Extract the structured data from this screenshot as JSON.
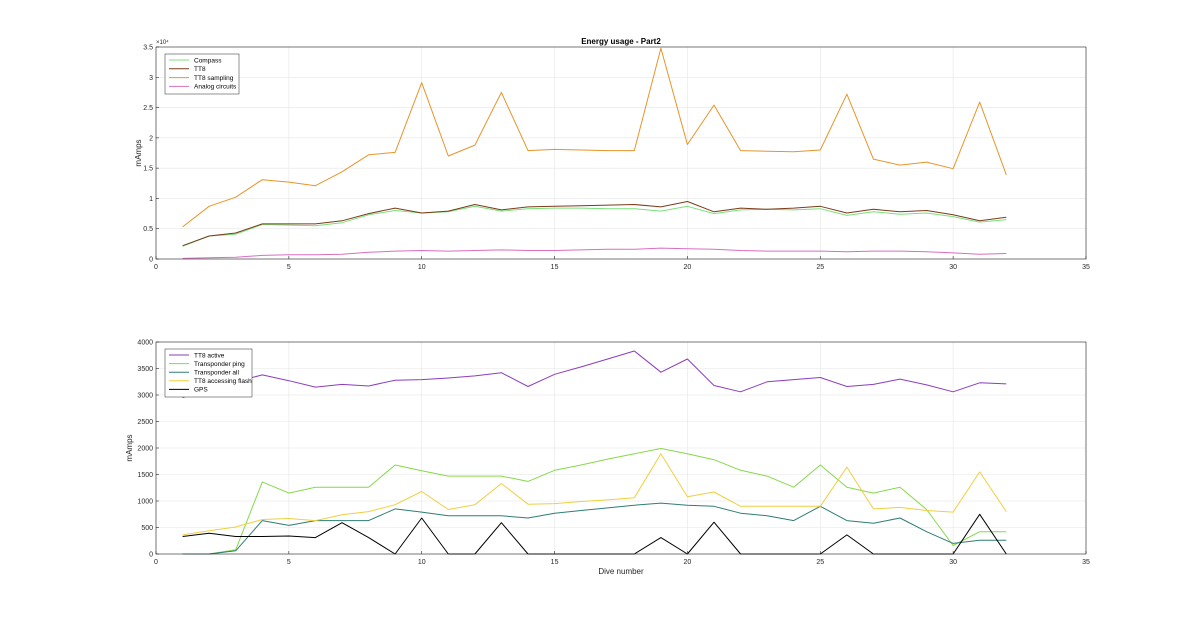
{
  "chart_data": [
    {
      "type": "line",
      "title": "Energy usage - Part2",
      "xlabel": "",
      "ylabel": "mAmps",
      "y_exponent_label": "×10⁴",
      "xlim": [
        0,
        35
      ],
      "ylim": [
        0,
        35000
      ],
      "xticks": [
        0,
        5,
        10,
        15,
        20,
        25,
        30,
        35
      ],
      "yticks": [
        0,
        5000,
        10000,
        15000,
        20000,
        25000,
        30000,
        35000
      ],
      "ytick_labels": [
        "0",
        "0.5",
        "1",
        "1.5",
        "2",
        "2.5",
        "3",
        "3.5"
      ],
      "grid": true,
      "legend_position": "top-left",
      "x": [
        1,
        2,
        3,
        4,
        5,
        6,
        7,
        8,
        9,
        10,
        11,
        12,
        13,
        14,
        15,
        16,
        17,
        18,
        19,
        20,
        21,
        22,
        23,
        24,
        25,
        26,
        27,
        28,
        29,
        30,
        31,
        32
      ],
      "series": [
        {
          "name": "Compass",
          "color": "#7be07b",
          "values": [
            2100,
            3800,
            4100,
            5700,
            5600,
            5500,
            6000,
            7300,
            8000,
            7600,
            7800,
            8700,
            7900,
            8300,
            8400,
            8400,
            8300,
            8300,
            7900,
            8700,
            7500,
            8100,
            8200,
            8100,
            8300,
            7200,
            7800,
            7400,
            7600,
            7000,
            6100,
            6500
          ]
        },
        {
          "name": "TT8",
          "color": "#7a3b1a",
          "values": [
            2200,
            3800,
            4300,
            5800,
            5800,
            5800,
            6300,
            7500,
            8400,
            7600,
            7900,
            9000,
            8100,
            8600,
            8700,
            8800,
            8900,
            9000,
            8600,
            9500,
            7800,
            8400,
            8200,
            8400,
            8700,
            7600,
            8200,
            7800,
            8000,
            7300,
            6300,
            6900
          ]
        },
        {
          "name": "TT8 sampling",
          "color": "#e8942a",
          "values": [
            5300,
            8700,
            10200,
            13100,
            12700,
            12100,
            14400,
            17200,
            17600,
            29100,
            17000,
            18800,
            27500,
            17900,
            18100,
            18000,
            17900,
            17900,
            34800,
            18900,
            25400,
            17900,
            17800,
            17700,
            18000,
            27200,
            16500,
            15500,
            16000,
            14900,
            25900,
            13900
          ]
        },
        {
          "name": "Analog circuits",
          "color": "#d86ec2",
          "values": [
            100,
            200,
            300,
            600,
            700,
            700,
            800,
            1100,
            1300,
            1400,
            1300,
            1400,
            1500,
            1400,
            1400,
            1500,
            1600,
            1600,
            1800,
            1700,
            1600,
            1400,
            1300,
            1300,
            1300,
            1200,
            1300,
            1300,
            1200,
            1000,
            800,
            900
          ]
        }
      ]
    },
    {
      "type": "line",
      "title": "",
      "xlabel": "Dive number",
      "ylabel": "mAmps",
      "xlim": [
        0,
        35
      ],
      "ylim": [
        0,
        4000
      ],
      "xticks": [
        0,
        5,
        10,
        15,
        20,
        25,
        30,
        35
      ],
      "yticks": [
        0,
        500,
        1000,
        1500,
        2000,
        2500,
        3000,
        3500,
        4000
      ],
      "ytick_labels": [
        "0",
        "500",
        "1000",
        "1500",
        "2000",
        "2500",
        "3000",
        "3500",
        "4000"
      ],
      "grid": true,
      "legend_position": "top-left",
      "x": [
        1,
        2,
        3,
        4,
        5,
        6,
        7,
        8,
        9,
        10,
        11,
        12,
        13,
        14,
        15,
        16,
        17,
        18,
        19,
        20,
        21,
        22,
        23,
        24,
        25,
        26,
        27,
        28,
        29,
        30,
        31,
        32
      ],
      "series": [
        {
          "name": "TT8 active",
          "color": "#8b3dbd",
          "values": [
            2950,
            3150,
            3250,
            3380,
            3270,
            3150,
            3200,
            3170,
            3280,
            3290,
            3320,
            3360,
            3420,
            3160,
            3390,
            3530,
            3680,
            3830,
            3430,
            3680,
            3180,
            3060,
            3250,
            3290,
            3330,
            3160,
            3200,
            3300,
            3190,
            3060,
            3230,
            3210
          ]
        },
        {
          "name": "Transponder ping",
          "color": "#86d94a",
          "values": [
            0,
            0,
            80,
            1360,
            1150,
            1260,
            1260,
            1260,
            1680,
            1570,
            1470,
            1470,
            1470,
            1370,
            1580,
            1680,
            1790,
            1890,
            1990,
            1890,
            1780,
            1580,
            1470,
            1260,
            1680,
            1260,
            1150,
            1260,
            840,
            160,
            420,
            420
          ]
        },
        {
          "name": "Transponder all",
          "color": "#2e7d74",
          "values": [
            0,
            0,
            60,
            630,
            540,
            630,
            630,
            630,
            850,
            790,
            720,
            720,
            720,
            680,
            770,
            820,
            870,
            920,
            960,
            920,
            900,
            770,
            720,
            630,
            900,
            630,
            580,
            680,
            420,
            200,
            260,
            260
          ]
        },
        {
          "name": "TT8 accessing flash",
          "color": "#f0cf40",
          "values": [
            360,
            440,
            510,
            650,
            670,
            630,
            740,
            800,
            930,
            1180,
            840,
            930,
            1330,
            940,
            950,
            990,
            1020,
            1060,
            1890,
            1080,
            1170,
            900,
            900,
            900,
            900,
            1640,
            850,
            880,
            820,
            790,
            1550,
            800
          ]
        },
        {
          "name": "GPS",
          "color": "#000000",
          "values": [
            330,
            390,
            330,
            330,
            340,
            310,
            590,
            310,
            0,
            680,
            0,
            0,
            590,
            0,
            0,
            0,
            0,
            0,
            310,
            0,
            600,
            0,
            0,
            0,
            0,
            360,
            0,
            0,
            0,
            0,
            750,
            0
          ]
        }
      ]
    }
  ]
}
